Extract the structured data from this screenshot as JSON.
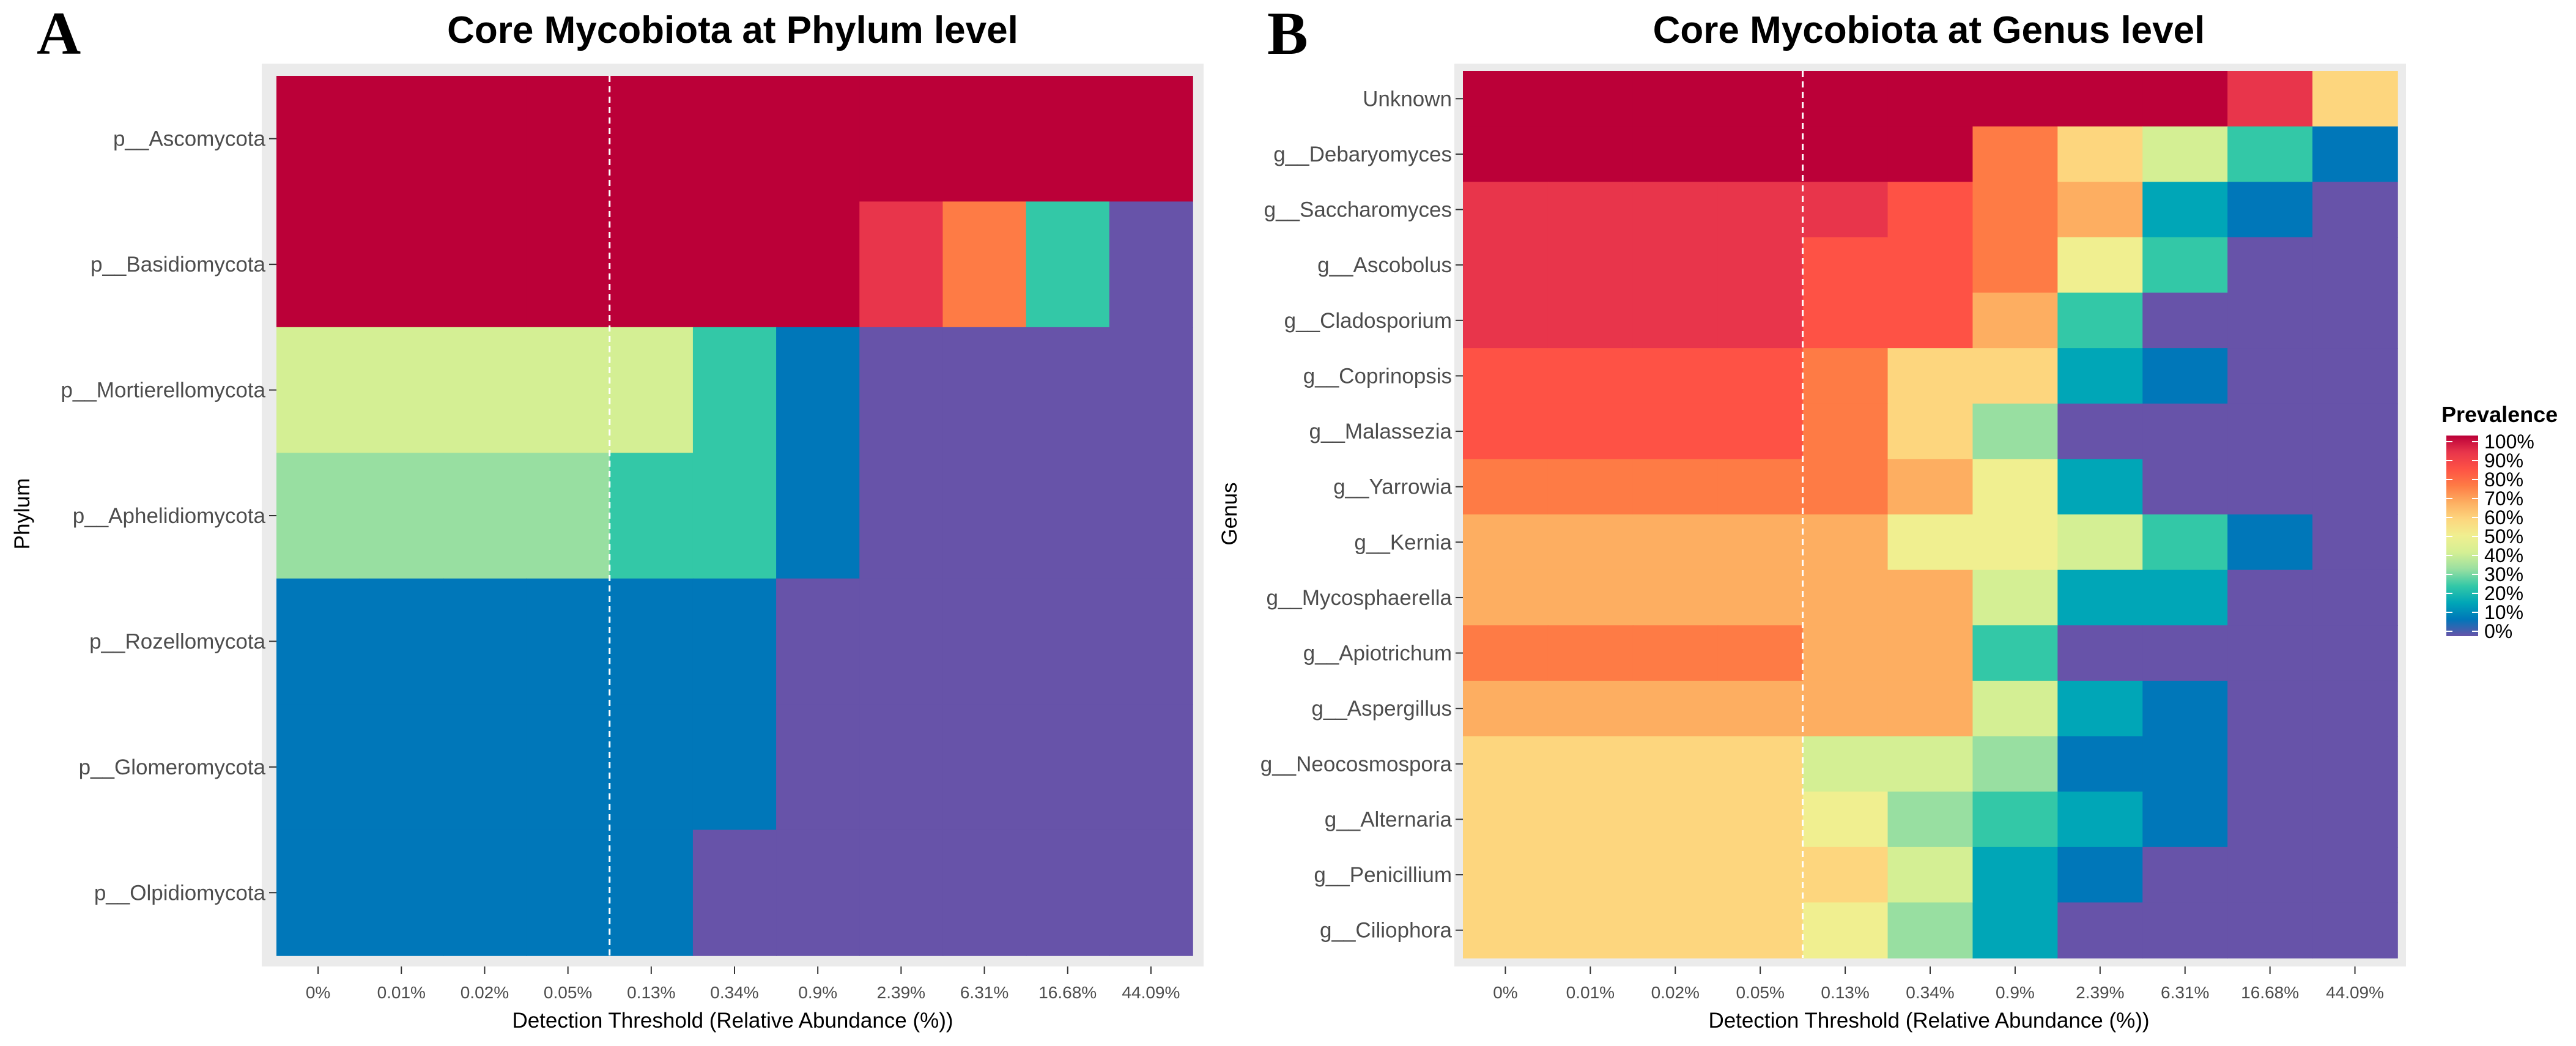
{
  "chart_data": [
    {
      "panel_label": "A",
      "type": "heatmap",
      "title": "Core Mycobiota at Phylum level",
      "xlabel": "Detection Threshold (Relative Abundance (%))",
      "ylabel": "Phylum",
      "x": [
        "0%",
        "0.01%",
        "0.02%",
        "0.05%",
        "0.13%",
        "0.34%",
        "0.9%",
        "2.39%",
        "6.31%",
        "16.68%",
        "44.09%"
      ],
      "y": [
        "p__Ascomycota",
        "p__Basidiomycota",
        "p__Mortierellomycota",
        "p__Aphelidiomycota",
        "p__Rozellomycota",
        "p__Glomeromycota",
        "p__Olpidiomycota"
      ],
      "values": [
        [
          100,
          100,
          100,
          100,
          100,
          100,
          100,
          100,
          100,
          100,
          100
        ],
        [
          100,
          100,
          100,
          100,
          100,
          100,
          100,
          90,
          75,
          25,
          0
        ],
        [
          45,
          45,
          45,
          45,
          45,
          25,
          10,
          0,
          0,
          0,
          0
        ],
        [
          35,
          35,
          35,
          35,
          25,
          25,
          10,
          0,
          0,
          0,
          0
        ],
        [
          10,
          10,
          10,
          10,
          10,
          10,
          0,
          0,
          0,
          0,
          0
        ],
        [
          10,
          10,
          10,
          10,
          10,
          10,
          0,
          0,
          0,
          0,
          0
        ],
        [
          10,
          10,
          10,
          10,
          10,
          0,
          0,
          0,
          0,
          0,
          0
        ]
      ],
      "reference_line": "0.05%–0.13%"
    },
    {
      "panel_label": "B",
      "type": "heatmap",
      "title": "Core Mycobiota at Genus level",
      "xlabel": "Detection Threshold (Relative Abundance (%))",
      "ylabel": "Genus",
      "x": [
        "0%",
        "0.01%",
        "0.02%",
        "0.05%",
        "0.13%",
        "0.34%",
        "0.9%",
        "2.39%",
        "6.31%",
        "16.68%",
        "44.09%"
      ],
      "y": [
        "Unknown",
        "g__Debaryomyces",
        "g__Saccharomyces",
        "g__Ascobolus",
        "g__Cladosporium",
        "g__Coprinopsis",
        "g__Malassezia",
        "g__Yarrowia",
        "g__Kernia",
        "g__Mycosphaerella",
        "g__Apiotrichum",
        "g__Aspergillus",
        "g__Neocosmospora",
        "g__Alternaria",
        "g__Penicillium",
        "g__Ciliophora"
      ],
      "values": [
        [
          100,
          100,
          100,
          100,
          100,
          100,
          100,
          100,
          100,
          90,
          55
        ],
        [
          100,
          100,
          100,
          100,
          100,
          100,
          75,
          55,
          45,
          25,
          10
        ],
        [
          90,
          90,
          90,
          90,
          90,
          80,
          75,
          65,
          20,
          10,
          0
        ],
        [
          90,
          90,
          90,
          90,
          80,
          80,
          75,
          50,
          25,
          0,
          0
        ],
        [
          90,
          90,
          90,
          90,
          80,
          80,
          65,
          25,
          0,
          0,
          0
        ],
        [
          80,
          80,
          80,
          80,
          75,
          55,
          55,
          20,
          10,
          0,
          0
        ],
        [
          80,
          80,
          80,
          80,
          75,
          55,
          35,
          0,
          0,
          0,
          0
        ],
        [
          75,
          75,
          75,
          75,
          75,
          65,
          50,
          20,
          0,
          0,
          0
        ],
        [
          65,
          65,
          65,
          65,
          65,
          50,
          50,
          45,
          25,
          10,
          0
        ],
        [
          65,
          65,
          65,
          65,
          65,
          65,
          45,
          20,
          20,
          0,
          0
        ],
        [
          75,
          75,
          75,
          75,
          65,
          65,
          25,
          0,
          0,
          0,
          0
        ],
        [
          65,
          65,
          65,
          65,
          65,
          65,
          45,
          20,
          10,
          0,
          0
        ],
        [
          55,
          55,
          55,
          55,
          45,
          45,
          35,
          10,
          10,
          0,
          0
        ],
        [
          55,
          55,
          55,
          55,
          50,
          35,
          25,
          20,
          10,
          0,
          0
        ],
        [
          55,
          55,
          55,
          55,
          55,
          45,
          20,
          10,
          0,
          0,
          0
        ],
        [
          55,
          55,
          55,
          55,
          50,
          35,
          20,
          0,
          0,
          0,
          0
        ]
      ],
      "reference_line": "0.05%–0.13%"
    }
  ],
  "legend": {
    "title": "Prevalence",
    "labels": [
      "100%",
      "90%",
      "80%",
      "70%",
      "60%",
      "50%",
      "40%",
      "30%",
      "20%",
      "10%",
      "0%"
    ],
    "colors": [
      "#bb0038",
      "#e8354b",
      "#fe5245",
      "#fe7b45",
      "#fdae61",
      "#fdd67e",
      "#f0ef90",
      "#d4ef94",
      "#98dfa1",
      "#33c8a7",
      "#00a6b7",
      "#0077b9",
      "#6753a9"
    ]
  }
}
